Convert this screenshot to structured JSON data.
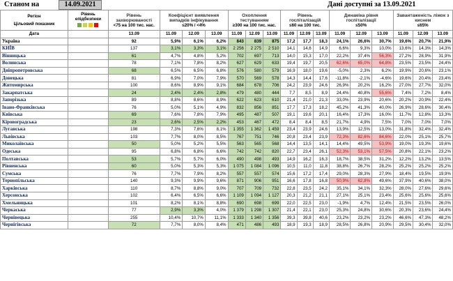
{
  "top": {
    "state_label": "Станом на",
    "state_date": "14.09.2021",
    "available_label": "Дані доступні за  13.09.2021"
  },
  "headers": {
    "region": "Регіон",
    "target": "Цільовий показник",
    "date": "Дата",
    "readiness": "Рівень епідбезпеки",
    "morbidity": "Рівень захворюваності",
    "morbidity_target": "<75 на 100 тис. нас.",
    "detection": "Коефіцієнт виявлення випадків інфікування",
    "detection_target": "≤20% / <4%",
    "testing": "Охоплення тестуванням",
    "testing_target": "≥300 на 100 тис. нас.",
    "hosp": "Рівень госпіталізацій",
    "hosp_target": "≤60 на 100 тис.",
    "hospdyn": "Динаміка рівня госпіталізації",
    "hospdyn_target": "≤50%",
    "oxygen": "Завантаженість ліжок з киснем",
    "oxygen_target": "≤65%",
    "d1": "13.09",
    "d2": "11.09",
    "d3": "12.09",
    "d4": "13.09"
  },
  "colors": {
    "readiness_swatches": [
      "#70ad47",
      "#c9d64a",
      "#ffc000",
      "#ff0000"
    ]
  },
  "rows": [
    {
      "region": "Україна",
      "morb": "92",
      "det": [
        "5,9%",
        "6,1%",
        "6,2%"
      ],
      "test": [
        "843",
        "839",
        "875"
      ],
      "hosp": [
        "17,2",
        "17,7",
        "18,3"
      ],
      "dyn": [
        "24,1%",
        "26,6%",
        "30,7%"
      ],
      "oxy": [
        "19,6%",
        "20,7%",
        "21,9%"
      ]
    },
    {
      "region": "КИЇВ",
      "morb": "137",
      "det": [
        "3,1%",
        "3,3%",
        "3,1%"
      ],
      "test": [
        "2 256",
        "2 275",
        "2 510"
      ],
      "hosp": [
        "14,1",
        "14,6",
        "14,9"
      ],
      "dyn": [
        "6,6%",
        "9,3%",
        "10,0%"
      ],
      "oxy": [
        "13,6%",
        "14,3%",
        "14,3%"
      ]
    },
    {
      "region": "Вінницька",
      "morb": "61",
      "det": [
        "4,7%",
        "4,8%",
        "5,2%"
      ],
      "test": [
        "702",
        "697",
        "713"
      ],
      "hosp": [
        "14,0",
        "15,3",
        "17,0"
      ],
      "dyn": [
        "22,2%",
        "37,4%",
        "56,3%"
      ],
      "oxy": [
        "27,2%",
        "28,9%",
        "31,9%"
      ]
    },
    {
      "region": "Волинська",
      "morb": "78",
      "det": [
        "7,1%",
        "7,8%",
        "8,2%"
      ],
      "test": [
        "627",
        "629",
        "633"
      ],
      "hosp": [
        "19,4",
        "19,7",
        "20,5"
      ],
      "dyn": [
        "62,6%",
        "65,0%",
        "64,8%"
      ],
      "oxy": [
        "23,5%",
        "23,5%",
        "24,4%"
      ]
    },
    {
      "region": "Дніпропетровська",
      "morb": "68",
      "det": [
        "6,5%",
        "6,5%",
        "6,8%"
      ],
      "test": [
        "576",
        "580",
        "579"
      ],
      "hosp": [
        "16,9",
        "18,0",
        "19,6"
      ],
      "dyn": [
        "-5,0%",
        "2,3%",
        "6,2%"
      ],
      "oxy": [
        "19,9%",
        "20,6%",
        "23,1%"
      ]
    },
    {
      "region": "Донецька",
      "morb": "81",
      "det": [
        "6,9%",
        "7,0%",
        "7,9%"
      ],
      "test": [
        "570",
        "569",
        "578"
      ],
      "hosp": [
        "14,3",
        "14,4",
        "17,6"
      ],
      "dyn": [
        "-11,8%",
        "-2,1%",
        "-4,6%"
      ],
      "oxy": [
        "19,6%",
        "20,4%",
        "23,4%"
      ]
    },
    {
      "region": "Житомирська",
      "morb": "100",
      "det": [
        "8,6%",
        "8,9%",
        "9,1%"
      ],
      "test": [
        "684",
        "678",
        "706"
      ],
      "hosp": [
        "24,2",
        "23,9",
        "24,6"
      ],
      "dyn": [
        "26,9%",
        "20,2%",
        "16,2%"
      ],
      "oxy": [
        "27,0%",
        "27,7%",
        "32,0%"
      ]
    },
    {
      "region": "Закарпатська",
      "morb": "24",
      "det": [
        "2,4%",
        "2,4%",
        "2,8%"
      ],
      "test": [
        "479",
        "480",
        "444"
      ],
      "hosp": [
        "7,7",
        "8,5",
        "8,9"
      ],
      "dyn": [
        "24,4%",
        "40,8%",
        "55,6%"
      ],
      "oxy": [
        "7,4%",
        "7,2%",
        "8,4%"
      ]
    },
    {
      "region": "Запорізька",
      "morb": "89",
      "det": [
        "8,8%",
        "8,6%",
        "8,9%"
      ],
      "test": [
        "622",
        "623",
        "610"
      ],
      "hosp": [
        "21,4",
        "21,0",
        "21,3"
      ],
      "dyn": [
        "33,0%",
        "23,9%",
        "20,6%"
      ],
      "oxy": [
        "20,2%",
        "20,9%",
        "22,4%"
      ]
    },
    {
      "region": "Івано-Франківська",
      "morb": "76",
      "det": [
        "5,0%",
        "5,1%",
        "4,9%"
      ],
      "test": [
        "832",
        "856",
        "851"
      ],
      "hosp": [
        "17,7",
        "17,3",
        "18,2"
      ],
      "dyn": [
        "45,2%",
        "41,3%",
        "40,0%"
      ],
      "oxy": [
        "26,9%",
        "28,6%",
        "30,4%"
      ]
    },
    {
      "region": "Київська",
      "morb": "69",
      "det": [
        "7,6%",
        "7,8%",
        "7,9%"
      ],
      "test": [
        "495",
        "487",
        "507"
      ],
      "hosp": [
        "19,1",
        "19,6",
        "20,1"
      ],
      "dyn": [
        "16,4%",
        "17,3%",
        "16,0%"
      ],
      "oxy": [
        "11,7%",
        "12,8%",
        "13,3%"
      ]
    },
    {
      "region": "Кіровоградська",
      "morb": "23",
      "det": [
        "2,6%",
        "2,5%",
        "2,2%"
      ],
      "test": [
        "453",
        "467",
        "472"
      ],
      "hosp": [
        "8,4",
        "8,4",
        "8,5"
      ],
      "dyn": [
        "21,7%",
        "4,9%",
        "7,5%"
      ],
      "oxy": [
        "7,0%",
        "7,0%",
        "7,0%"
      ]
    },
    {
      "region": "Луганська",
      "morb": "198",
      "det": [
        "7,3%",
        "7,6%",
        "8,1%"
      ],
      "test": [
        "1 355",
        "1 362",
        "1 459"
      ],
      "hosp": [
        "23,4",
        "23,9",
        "24,6"
      ],
      "dyn": [
        "13,9%",
        "12,5%",
        "13,0%"
      ],
      "oxy": [
        "31,8%",
        "32,4%",
        "32,4%"
      ]
    },
    {
      "region": "Львівська",
      "morb": "103",
      "det": [
        "7,7%",
        "8,0%",
        "8,5%"
      ],
      "test": [
        "767",
        "751",
        "746"
      ],
      "hosp": [
        "20,8",
        "23,4",
        "23,9"
      ],
      "dyn": [
        "72,3%",
        "82,6%",
        "84,6%"
      ],
      "oxy": [
        "22,0%",
        "25,1%",
        "25,7%"
      ]
    },
    {
      "region": "Миколаївська",
      "morb": "50",
      "det": [
        "5,0%",
        "5,2%",
        "5,5%"
      ],
      "test": [
        "563",
        "565",
        "568"
      ],
      "hosp": [
        "14,4",
        "13,5",
        "14,1"
      ],
      "dyn": [
        "14,4%",
        "49,5%",
        "53,9%"
      ],
      "oxy": [
        "19,0%",
        "19,3%",
        "19,6%"
      ]
    },
    {
      "region": "Одеська",
      "morb": "95",
      "det": [
        "6,8%",
        "6,8%",
        "6,6%"
      ],
      "test": [
        "742",
        "742",
        "820"
      ],
      "hosp": [
        "22,7",
        "23,4",
        "26,1"
      ],
      "dyn": [
        "52,3%",
        "53,1%",
        "57,5%"
      ],
      "oxy": [
        "20,8%",
        "22,1%",
        "23,2%"
      ]
    },
    {
      "region": "Полтавська",
      "morb": "53",
      "det": [
        "5,7%",
        "5,7%",
        "6,0%"
      ],
      "test": [
        "490",
        "498",
        "493"
      ],
      "hosp": [
        "14,9",
        "16,2",
        "16,3"
      ],
      "dyn": [
        "18,7%",
        "38,5%",
        "31,2%"
      ],
      "oxy": [
        "12,2%",
        "13,2%",
        "13,5%"
      ]
    },
    {
      "region": "Рівненська",
      "morb": "60",
      "det": [
        "5,0%",
        "5,3%",
        "5,3%"
      ],
      "test": [
        "1 075",
        "1 084",
        "1 096"
      ],
      "hosp": [
        "10,5",
        "11,0",
        "11,8"
      ],
      "dyn": [
        "38,8%",
        "26,7%",
        "28,2%"
      ],
      "oxy": [
        "25,2%",
        "25,2%",
        "25,2%"
      ]
    },
    {
      "region": "Сумська",
      "morb": "76",
      "det": [
        "7,7%",
        "7,9%",
        "8,2%"
      ],
      "test": [
        "557",
        "557",
        "574"
      ],
      "hosp": [
        "15,6",
        "17,2",
        "17,4"
      ],
      "dyn": [
        "29,0%",
        "28,3%",
        "27,9%"
      ],
      "oxy": [
        "18,4%",
        "19,5%",
        "19,9%"
      ]
    },
    {
      "region": "Тернопільська",
      "morb": "140",
      "det": [
        "9,3%",
        "9,9%",
        "9,6%"
      ],
      "test": [
        "871",
        "906",
        "951"
      ],
      "hosp": [
        "16,6",
        "17,8",
        "16,8"
      ],
      "dyn": [
        "50,9%",
        "62,8%",
        "49,6%"
      ],
      "oxy": [
        "37,9%",
        "40,6%",
        "38,0%"
      ]
    },
    {
      "region": "Харківська",
      "morb": "110",
      "det": [
        "8,7%",
        "8,8%",
        "9,0%"
      ],
      "test": [
        "707",
        "709",
        "732"
      ],
      "hosp": [
        "22,8",
        "23,5",
        "24,2"
      ],
      "dyn": [
        "35,1%",
        "34,1%",
        "32,3%"
      ],
      "oxy": [
        "28,0%",
        "27,6%",
        "29,6%"
      ]
    },
    {
      "region": "Херсонська",
      "morb": "102",
      "det": [
        "6,4%",
        "6,5%",
        "6,6%"
      ],
      "test": [
        "1 109",
        "1 094",
        "1 127"
      ],
      "hosp": [
        "20,3",
        "21,2",
        "21,1"
      ],
      "dyn": [
        "27,1%",
        "25,1%",
        "23,4%"
      ],
      "oxy": [
        "25,6%",
        "25,6%",
        "25,6%"
      ]
    },
    {
      "region": "Хмельницька",
      "morb": "101",
      "det": [
        "8,2%",
        "8,1%",
        "8,8%"
      ],
      "test": [
        "690",
        "698",
        "699"
      ],
      "hosp": [
        "22,0",
        "22,5",
        "23,0"
      ],
      "dyn": [
        "-1,9%",
        "4,7%",
        "12,4%"
      ],
      "oxy": [
        "21,5%",
        "23,5%",
        "26,0%"
      ]
    },
    {
      "region": "Черкаська",
      "morb": "77",
      "det": [
        "2,9%",
        "3,3%",
        "4,0%"
      ],
      "test": [
        "1 379",
        "1 298",
        "1 307"
      ],
      "hosp": [
        "21,4",
        "22,1",
        "23,0"
      ],
      "dyn": [
        "25,3%",
        "24,8%",
        "30,6%"
      ],
      "oxy": [
        "20,3%",
        "23,6%",
        "24,4%"
      ]
    },
    {
      "region": "Чернівецька",
      "morb": "255",
      "det": [
        "10,4%",
        "10,7%",
        "11,1%"
      ],
      "test": [
        "1 333",
        "1 340",
        "1 356"
      ],
      "hosp": [
        "39,3",
        "39,8",
        "40,6"
      ],
      "dyn": [
        "23,2%",
        "23,2%",
        "23,2%"
      ],
      "oxy": [
        "46,6%",
        "47,3%",
        "48,2%"
      ]
    },
    {
      "region": "Чернігівська",
      "morb": "72",
      "det": [
        "7,7%",
        "8,0%",
        "8,4%"
      ],
      "test": [
        "471",
        "486",
        "493"
      ],
      "hosp": [
        "18,9",
        "19,3",
        "18,9"
      ],
      "dyn": [
        "28,5%",
        "26,8%",
        "20,9%"
      ],
      "oxy": [
        "29,5%",
        "30,4%",
        "32,0%"
      ]
    }
  ]
}
